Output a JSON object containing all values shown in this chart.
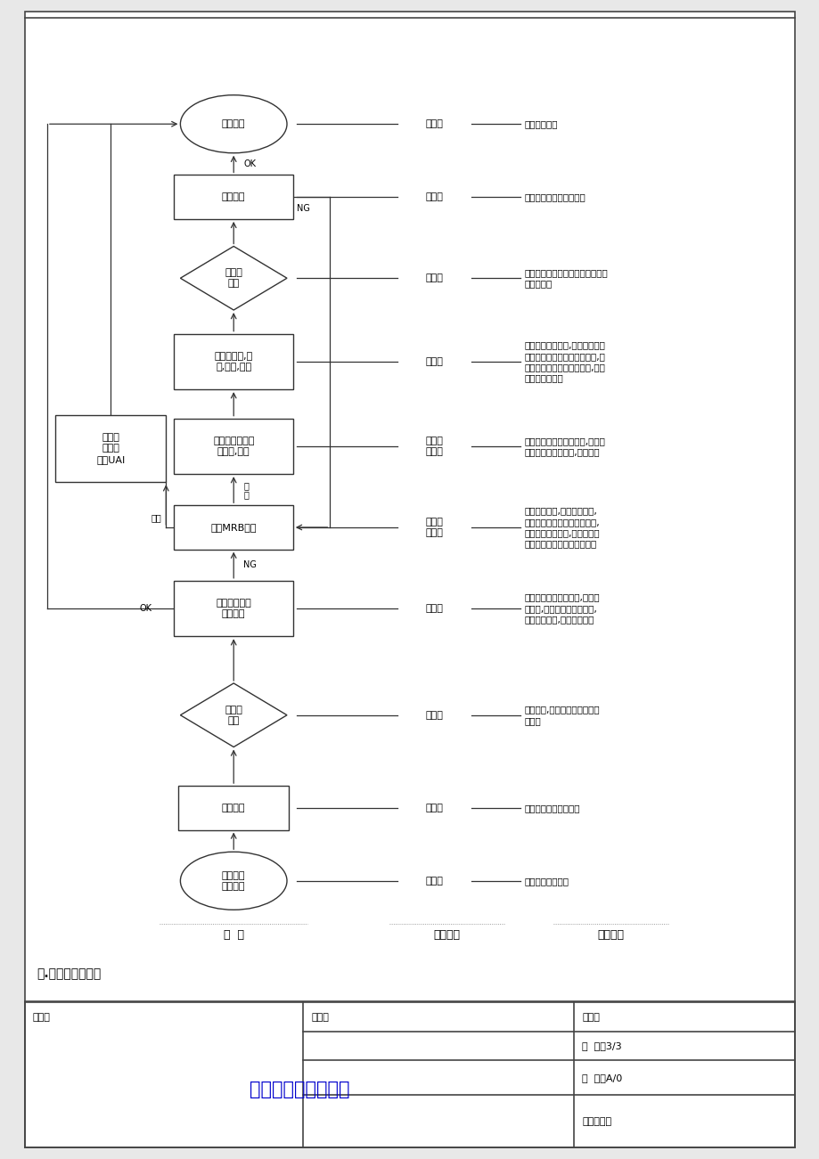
{
  "bg_color": "#e8e8e8",
  "page_bg": "#ffffff",
  "border_color": "#444444",
  "title_text": "进货检验指引及流程",
  "title_color": "#0000cc",
  "section_title": "附.进货检验流程图",
  "col_header_0": "流  程",
  "col_header_1": "负责部门",
  "col_header_2": "职责说明",
  "hdr_shengxiao": "生效日期：",
  "hdr_banben": "版  本：A/0",
  "hdr_yeci": "页  次：3/3",
  "hdr_bianzhi": "编制：",
  "hdr_shenhe": "审核：",
  "hdr_pizhun": "批准：",
  "node_start": "供应商送\n货至公司",
  "node_box1": "仓库接受",
  "node_dia1": "外检员\n检验",
  "node_box2": "外检验员记录\n检验结果",
  "node_box3": "进货MRB会议",
  "node_box4": "非紧急物料且影\n响功能,退货",
  "node_box5": "紧急进\n货特采\n让步UAI",
  "node_box6": "供应商改良,加\n工,返工,挑选",
  "node_dia2": "外检员\n检验",
  "node_box7": "再检结果",
  "node_end": "仓库入库",
  "dept_0": "供应商",
  "dept_1": "仓储科",
  "dept_2": "品管部",
  "dept_3": "品管部",
  "dept_4": "物控部\n品管部",
  "dept_5": "物控部\n品管部",
  "dept_6": "供应部",
  "dept_7": "品管部",
  "dept_8": "品管部",
  "dept_9": "仓储科",
  "duty_0": "供应商送货至公司",
  "duty_1": "仓库科仓管员负责收货",
  "duty_2": "根据进货,任务单及规范资料进\n行检验",
  "duty_3": "外检验员记录检验结果,若有发\n现不良,则将记录给相关单位,\n传达不良资讯,以便解决处理",
  "duty_4": "经各部门决定,重大异常问题,\n无法接受的紧急物料必须判退,\n由供应部通知厂商,销售部与客\n户重新沟通确认推迟后的交期",
  "duty_5": "物控部确定为非紧急物料,品管部\n评估影响功能的进货,判定退货",
  "duty_6": "物料由供应商返工,或在生产人力\n允许、且供应商同意的情况下,可\n先由生产挑选加工紧急物料,工时\n费由供应商支付",
  "duty_7": "外检员针对供应商改良送验后的物\n料进行检验",
  "duty_8": "外检员给出再检结果报告",
  "duty_9": "仓库接受入库",
  "label_ok1": "OK",
  "label_ng1": "NG",
  "label_panhui": "判\n退",
  "label_fangbuo": "放货",
  "label_ok2": "OK",
  "label_ng2": "NG"
}
